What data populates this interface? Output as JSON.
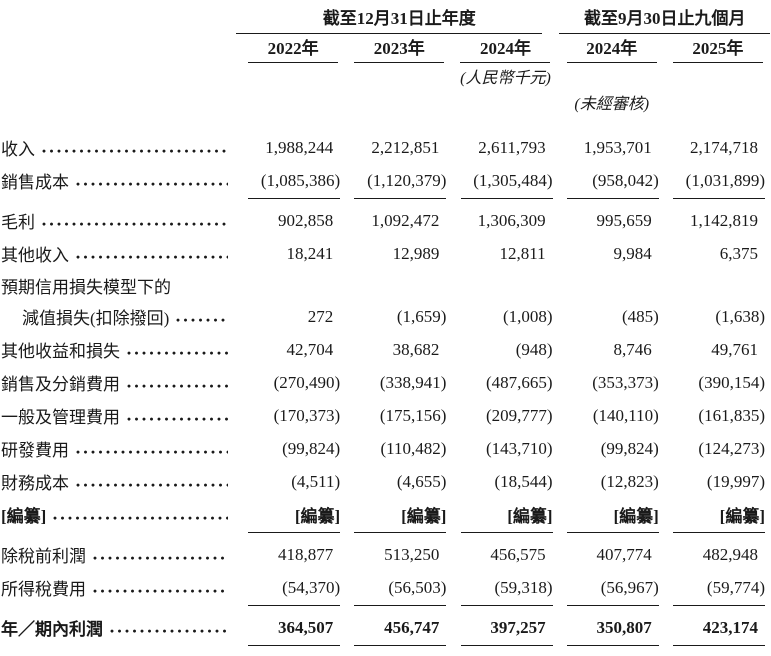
{
  "header": {
    "group1": {
      "title": "截至12月31日止年度",
      "years": [
        "2022年",
        "2023年",
        "2024年"
      ]
    },
    "group2": {
      "title": "截至9月30日止九個月",
      "years": [
        "2024年",
        "2025年"
      ]
    },
    "currency_note": "(人民幣千元)",
    "unaudited_note": "(未經審核)"
  },
  "rows": [
    {
      "label": "收入",
      "values": [
        "1,988,244",
        "2,212,851",
        "2,611,793",
        "1,953,701",
        "2,174,718"
      ]
    },
    {
      "label": "銷售成本",
      "values": [
        "(1,085,386)",
        "(1,120,379)",
        "(1,305,484)",
        "(958,042)",
        "(1,031,899)"
      ]
    },
    {
      "label": "毛利",
      "values": [
        "902,858",
        "1,092,472",
        "1,306,309",
        "995,659",
        "1,142,819"
      ]
    },
    {
      "label": "其他收入",
      "values": [
        "18,241",
        "12,989",
        "12,811",
        "9,984",
        "6,375"
      ]
    },
    {
      "label": "預期信用損失模型下的",
      "values": []
    },
    {
      "label": "減值損失(扣除撥回)",
      "values": [
        "272",
        "(1,659)",
        "(1,008)",
        "(485)",
        "(1,638)"
      ]
    },
    {
      "label": "其他收益和損失",
      "values": [
        "42,704",
        "38,682",
        "(948)",
        "8,746",
        "49,761"
      ]
    },
    {
      "label": "銷售及分銷費用",
      "values": [
        "(270,490)",
        "(338,941)",
        "(487,665)",
        "(353,373)",
        "(390,154)"
      ]
    },
    {
      "label": "一般及管理費用",
      "values": [
        "(170,373)",
        "(175,156)",
        "(209,777)",
        "(140,110)",
        "(161,835)"
      ]
    },
    {
      "label": "研發費用",
      "values": [
        "(99,824)",
        "(110,482)",
        "(143,710)",
        "(99,824)",
        "(124,273)"
      ]
    },
    {
      "label": "財務成本",
      "values": [
        "(4,511)",
        "(4,655)",
        "(18,544)",
        "(12,823)",
        "(19,997)"
      ]
    },
    {
      "label": "[編纂]",
      "values": [
        "[編纂]",
        "[編纂]",
        "[編纂]",
        "[編纂]",
        "[編纂]"
      ]
    },
    {
      "label": "除稅前利潤",
      "values": [
        "418,877",
        "513,250",
        "456,575",
        "407,774",
        "482,948"
      ]
    },
    {
      "label": "所得稅費用",
      "values": [
        "(54,370)",
        "(56,503)",
        "(59,318)",
        "(56,967)",
        "(59,774)"
      ]
    },
    {
      "label": "年／期內利潤",
      "values": [
        "364,507",
        "456,747",
        "397,257",
        "350,807",
        "423,174"
      ]
    }
  ]
}
